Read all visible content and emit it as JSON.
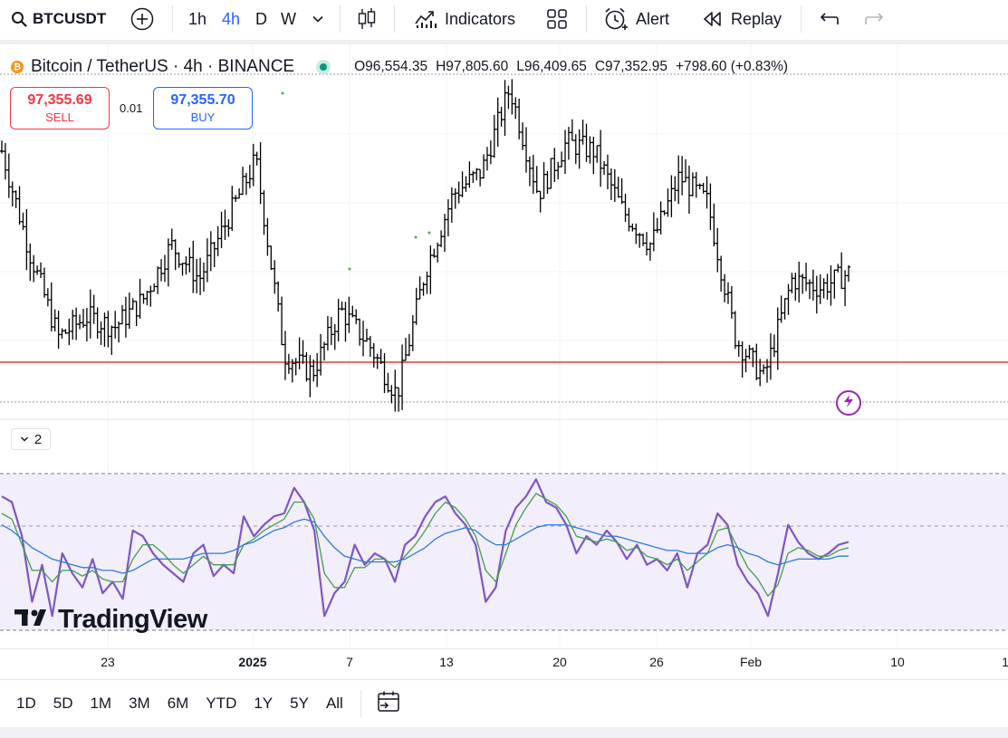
{
  "toolbar": {
    "symbol": "BTCUSDT",
    "timeframes": [
      "1h",
      "4h",
      "D",
      "W"
    ],
    "active_timeframe": "4h",
    "indicators_label": "Indicators",
    "alert_label": "Alert",
    "replay_label": "Replay",
    "icons": [
      "search-icon",
      "add-symbol-icon",
      "chevron-down-icon",
      "candles-icon",
      "indicators-icon",
      "templates-icon",
      "alert-icon",
      "replay-icon",
      "undo-icon",
      "redo-icon"
    ]
  },
  "legend": {
    "title": "Bitcoin / TetherUS · 4h · BINANCE",
    "coin_icon": "₿",
    "open": "O96,554.35",
    "high": "H97,805.60",
    "low": "L96,409.65",
    "close": "C97,352.95",
    "change": "+798.60 (+0.83%)"
  },
  "trade": {
    "sell_price": "97,355.69",
    "sell_label": "SELL",
    "spread": "0.01",
    "buy_price": "97,355.70",
    "buy_label": "BUY"
  },
  "indicator_pane": {
    "collapse_count": "2"
  },
  "watermark": {
    "text": "TradingView"
  },
  "time_axis": {
    "labels": [
      "23",
      "2025",
      "7",
      "13",
      "20",
      "26",
      "Feb",
      "10",
      "1"
    ]
  },
  "range_bar": {
    "buttons": [
      "1D",
      "5D",
      "1M",
      "3M",
      "6M",
      "YTD",
      "1Y",
      "5Y",
      "All"
    ]
  },
  "colors": {
    "accent": "#2962ff",
    "sell": "#f23645",
    "buy": "#2962ff",
    "horizontal_line": "#e03a3a",
    "rsi_line": "#7e57c2",
    "rsi_band": "#f2eefb",
    "ma_fast": "#43a047",
    "ma_slow": "#2f7bd9",
    "bars": "#000000"
  },
  "chart_data": {
    "type": "ohlc_bar",
    "symbol": "BTCUSDT",
    "interval": "4h",
    "x": [
      "Dec 23",
      "2025",
      "Jan 7",
      "Jan 13",
      "Jan 20",
      "Jan 26",
      "Feb",
      "Feb 10"
    ],
    "price_path": [
      104500,
      98500,
      93600,
      94800,
      94200,
      95800,
      99000,
      97000,
      100500,
      104000,
      92600,
      91500,
      95200,
      93200,
      90200,
      97500,
      102000,
      103300,
      108200,
      102000,
      105000,
      104500,
      101000,
      99000,
      103000,
      101500,
      93500,
      91200,
      97000,
      96500,
      97352.95
    ],
    "horizontal_line_price": 92000,
    "rsi": {
      "visible": true,
      "series": [
        {
          "values": [
            72,
            70,
            58,
            35,
            48,
            30,
            52,
            45,
            40,
            50,
            38,
            42,
            36,
            60,
            58,
            52,
            48,
            45,
            42,
            52,
            55,
            44,
            48,
            45,
            65,
            58,
            62,
            65,
            66,
            75,
            70,
            60,
            30,
            38,
            42,
            55,
            48,
            52,
            50,
            42,
            55,
            58,
            65,
            70,
            72,
            66,
            62,
            55,
            35,
            40,
            60,
            68,
            72,
            78,
            70,
            68,
            62,
            52,
            58,
            55,
            60,
            56,
            50,
            55,
            48,
            50,
            46,
            52,
            40,
            52,
            55,
            66,
            62,
            48,
            42,
            38,
            30,
            45,
            62,
            56,
            52,
            50,
            52,
            55,
            56
          ]
        },
        {
          "values": [
            66,
            64,
            55,
            46,
            46,
            42,
            46,
            46,
            44,
            46,
            43,
            42,
            42,
            50,
            55,
            55,
            52,
            48,
            45,
            48,
            51,
            48,
            48,
            48,
            55,
            57,
            60,
            62,
            64,
            70,
            70,
            64,
            45,
            40,
            40,
            47,
            47,
            50,
            50,
            47,
            51,
            55,
            60,
            66,
            70,
            68,
            64,
            58,
            46,
            42,
            52,
            62,
            68,
            73,
            71,
            69,
            65,
            58,
            57,
            56,
            57,
            56,
            53,
            54,
            51,
            50,
            48,
            50,
            46,
            49,
            52,
            60,
            61,
            54,
            47,
            43,
            37,
            41,
            52,
            54,
            53,
            51,
            51,
            53,
            54
          ]
        },
        {
          "values": [
            62,
            60,
            57,
            54,
            52,
            50,
            49,
            48,
            47,
            47,
            46,
            46,
            45,
            46,
            48,
            50,
            50,
            50,
            50,
            51,
            52,
            52,
            52,
            53,
            55,
            56,
            58,
            60,
            61,
            63,
            64,
            63,
            58,
            54,
            51,
            50,
            49,
            49,
            49,
            49,
            50,
            52,
            54,
            57,
            59,
            60,
            61,
            60,
            57,
            55,
            55,
            57,
            59,
            61,
            62,
            62,
            62,
            61,
            60,
            59,
            58,
            58,
            57,
            56,
            55,
            54,
            53,
            53,
            52,
            52,
            52,
            54,
            55,
            54,
            52,
            51,
            49,
            48,
            49,
            50,
            50,
            50,
            50,
            51,
            51
          ]
        }
      ]
    }
  }
}
